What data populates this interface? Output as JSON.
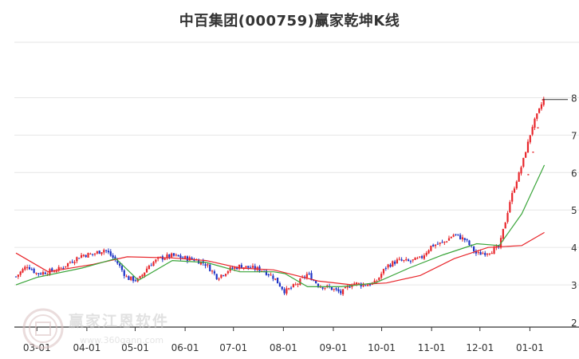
{
  "chart_data": {
    "type": "candlestick",
    "title": "中百集团(000759)赢家乾坤K线",
    "y_axis": {
      "range": [
        2,
        8.5
      ],
      "ticks": [
        2,
        3,
        4,
        5,
        6,
        7,
        8
      ],
      "position": "right"
    },
    "x_axis": {
      "ticks": [
        "03-01",
        "04-01",
        "05-01",
        "06-01",
        "07-01",
        "08-01",
        "09-01",
        "10-01",
        "11-01",
        "12-01",
        "01-01"
      ]
    },
    "grid": true,
    "colors": {
      "up": "#e8262b",
      "down": "#1f35c6",
      "ma_short": "#3aa53a",
      "ma_long": "#e8262b",
      "grid": "#e6e6e6"
    },
    "series": [
      {
        "type": "close",
        "points": [
          [
            "02-16",
            3.22
          ],
          [
            "02-23",
            3.52
          ],
          [
            "03-01",
            3.3
          ],
          [
            "03-08",
            3.35
          ],
          [
            "03-15",
            3.42
          ],
          [
            "03-22",
            3.62
          ],
          [
            "03-29",
            3.8
          ],
          [
            "04-05",
            3.82
          ],
          [
            "04-12",
            3.95
          ],
          [
            "04-19",
            3.65
          ],
          [
            "04-26",
            3.18
          ],
          [
            "05-03",
            3.12
          ],
          [
            "05-10",
            3.55
          ],
          [
            "05-17",
            3.72
          ],
          [
            "05-24",
            3.78
          ],
          [
            "05-31",
            3.72
          ],
          [
            "06-07",
            3.68
          ],
          [
            "06-14",
            3.55
          ],
          [
            "06-21",
            3.2
          ],
          [
            "06-28",
            3.4
          ],
          [
            "07-05",
            3.5
          ],
          [
            "07-12",
            3.45
          ],
          [
            "07-19",
            3.4
          ],
          [
            "07-26",
            3.2
          ],
          [
            "08-02",
            2.82
          ],
          [
            "08-09",
            3.0
          ],
          [
            "08-16",
            3.3
          ],
          [
            "08-23",
            2.98
          ],
          [
            "08-30",
            2.92
          ],
          [
            "09-06",
            2.78
          ],
          [
            "09-13",
            3.05
          ],
          [
            "09-20",
            3.0
          ],
          [
            "09-27",
            3.05
          ],
          [
            "10-04",
            3.5
          ],
          [
            "10-11",
            3.65
          ],
          [
            "10-18",
            3.62
          ],
          [
            "10-25",
            3.7
          ],
          [
            "11-01",
            4.05
          ],
          [
            "11-08",
            4.12
          ],
          [
            "11-15",
            4.35
          ],
          [
            "11-22",
            4.2
          ],
          [
            "11-29",
            3.82
          ],
          [
            "12-06",
            3.88
          ],
          [
            "12-13",
            4.0
          ],
          [
            "12-20",
            5.3
          ],
          [
            "12-27",
            6.2
          ],
          [
            "01-03",
            7.3
          ],
          [
            "01-10",
            8.0
          ]
        ]
      },
      {
        "type": "ma_short",
        "points": [
          [
            "02-16",
            3.0
          ],
          [
            "03-01",
            3.2
          ],
          [
            "03-29",
            3.45
          ],
          [
            "04-19",
            3.7
          ],
          [
            "05-03",
            3.12
          ],
          [
            "05-24",
            3.65
          ],
          [
            "06-14",
            3.6
          ],
          [
            "07-05",
            3.35
          ],
          [
            "07-26",
            3.35
          ],
          [
            "08-02",
            3.3
          ],
          [
            "08-16",
            2.95
          ],
          [
            "09-06",
            2.95
          ],
          [
            "09-27",
            3.05
          ],
          [
            "10-18",
            3.45
          ],
          [
            "11-08",
            3.8
          ],
          [
            "11-29",
            4.1
          ],
          [
            "12-13",
            4.05
          ],
          [
            "12-27",
            4.9
          ],
          [
            "01-10",
            6.2
          ]
        ]
      },
      {
        "type": "ma_long",
        "points": [
          [
            "02-16",
            3.85
          ],
          [
            "03-08",
            3.35
          ],
          [
            "04-05",
            3.55
          ],
          [
            "04-26",
            3.75
          ],
          [
            "05-24",
            3.72
          ],
          [
            "06-14",
            3.65
          ],
          [
            "07-05",
            3.45
          ],
          [
            "07-26",
            3.4
          ],
          [
            "08-23",
            3.1
          ],
          [
            "09-13",
            3.0
          ],
          [
            "10-04",
            3.05
          ],
          [
            "10-25",
            3.25
          ],
          [
            "11-15",
            3.7
          ],
          [
            "12-06",
            4.0
          ],
          [
            "12-27",
            4.05
          ],
          [
            "01-10",
            4.4
          ]
        ]
      }
    ]
  },
  "watermark": {
    "name": "赢家江恩软件",
    "url": "www.360gann.com"
  }
}
